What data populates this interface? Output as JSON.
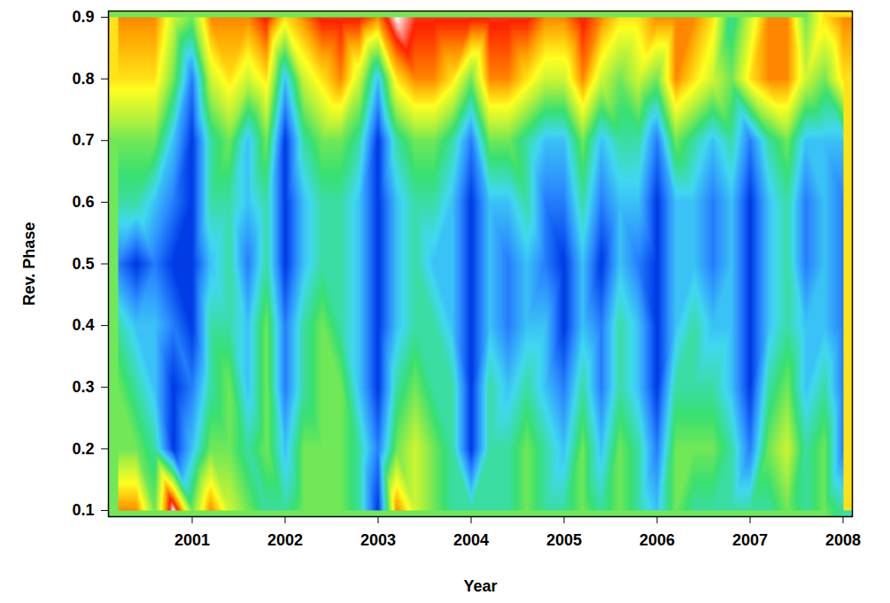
{
  "chart_data": {
    "type": "heatmap",
    "x_label": "Year",
    "y_label": "Rev. Phase",
    "xlim": [
      2000.1,
      2008.1
    ],
    "xticks": [
      2001,
      2002,
      2003,
      2004,
      2005,
      2006,
      2007,
      2008
    ],
    "ylim": [
      0.09,
      0.91
    ],
    "yticks": [
      0.1,
      0.2,
      0.3,
      0.4,
      0.5,
      0.6,
      0.7,
      0.8,
      0.9
    ],
    "zlim": [
      0,
      10
    ],
    "x": [
      2000.2,
      2000.4,
      2000.6,
      2000.8,
      2001.0,
      2001.2,
      2001.4,
      2001.6,
      2001.8,
      2002.0,
      2002.2,
      2002.4,
      2002.6,
      2002.8,
      2003.0,
      2003.2,
      2003.4,
      2003.6,
      2003.8,
      2004.0,
      2004.2,
      2004.4,
      2004.6,
      2004.8,
      2005.0,
      2005.2,
      2005.4,
      2005.6,
      2005.8,
      2006.0,
      2006.2,
      2006.4,
      2006.6,
      2006.8,
      2007.0,
      2007.2,
      2007.4,
      2007.6,
      2007.8,
      2008.0
    ],
    "y": [
      0.1,
      0.2,
      0.3,
      0.4,
      0.5,
      0.6,
      0.7,
      0.8,
      0.9
    ],
    "z": [
      [
        8,
        8,
        5,
        10,
        5,
        8,
        6,
        5,
        4,
        4,
        5,
        5,
        5,
        4,
        1,
        8,
        6,
        5,
        4,
        4,
        4,
        4,
        5,
        4,
        4,
        5,
        4,
        5,
        4,
        3,
        5,
        4,
        4,
        4,
        4,
        4,
        5,
        4,
        5,
        4
      ],
      [
        5,
        5,
        4,
        1,
        3,
        5,
        5,
        4,
        5,
        3,
        5,
        5,
        5,
        4,
        2,
        5,
        6,
        5,
        4,
        1,
        4,
        4,
        5,
        4,
        3,
        5,
        3,
        5,
        4,
        2,
        5,
        5,
        5,
        4,
        2,
        5,
        6,
        4,
        5,
        2
      ],
      [
        5,
        4,
        3,
        1,
        2,
        4,
        5,
        3,
        5,
        2,
        4,
        5,
        5,
        3,
        1,
        4,
        5,
        4,
        4,
        1,
        4,
        3,
        4,
        3,
        2,
        4,
        2,
        4,
        3,
        1,
        4,
        4,
        4,
        3,
        1,
        4,
        5,
        3,
        4,
        2
      ],
      [
        4,
        3,
        3,
        2,
        1,
        4,
        4,
        3,
        5,
        2,
        4,
        5,
        4,
        3,
        1,
        3,
        4,
        4,
        3,
        1,
        3,
        2,
        3,
        3,
        1,
        3,
        2,
        4,
        3,
        1,
        3,
        4,
        3,
        3,
        1,
        3,
        4,
        3,
        3,
        2
      ],
      [
        2,
        1,
        2,
        1,
        1,
        3,
        4,
        2,
        4,
        1,
        3,
        4,
        4,
        3,
        1,
        3,
        4,
        3,
        3,
        1,
        3,
        2,
        3,
        2,
        1,
        3,
        1,
        3,
        2,
        1,
        3,
        3,
        2,
        3,
        1,
        3,
        4,
        2,
        3,
        2
      ],
      [
        4,
        4,
        3,
        2,
        1,
        4,
        4,
        3,
        4,
        1,
        3,
        4,
        4,
        3,
        1,
        3,
        4,
        4,
        3,
        1,
        3,
        3,
        4,
        2,
        2,
        4,
        2,
        3,
        3,
        1,
        3,
        3,
        2,
        3,
        1,
        3,
        4,
        2,
        3,
        2
      ],
      [
        5,
        5,
        5,
        3,
        1,
        4,
        5,
        3,
        5,
        1,
        4,
        5,
        5,
        4,
        1,
        4,
        5,
        5,
        4,
        2,
        5,
        5,
        4,
        3,
        3,
        5,
        3,
        4,
        4,
        2,
        5,
        4,
        3,
        4,
        2,
        4,
        5,
        3,
        3,
        3
      ],
      [
        7,
        7,
        7,
        5,
        2,
        6,
        7,
        6,
        7,
        3,
        6,
        7,
        8,
        6,
        3,
        7,
        8,
        8,
        7,
        5,
        8,
        8,
        7,
        6,
        6,
        8,
        6,
        5,
        6,
        5,
        8,
        7,
        6,
        5,
        7,
        8,
        8,
        6,
        5,
        7
      ],
      [
        8,
        8,
        8,
        6,
        5,
        8,
        8,
        8,
        9,
        7,
        8,
        9,
        9,
        9,
        8,
        10,
        9,
        9,
        9,
        9,
        9,
        9,
        9,
        8,
        8,
        9,
        8,
        7,
        7,
        8,
        8,
        8,
        7,
        4,
        6,
        8,
        8,
        5,
        7,
        8
      ]
    ]
  }
}
